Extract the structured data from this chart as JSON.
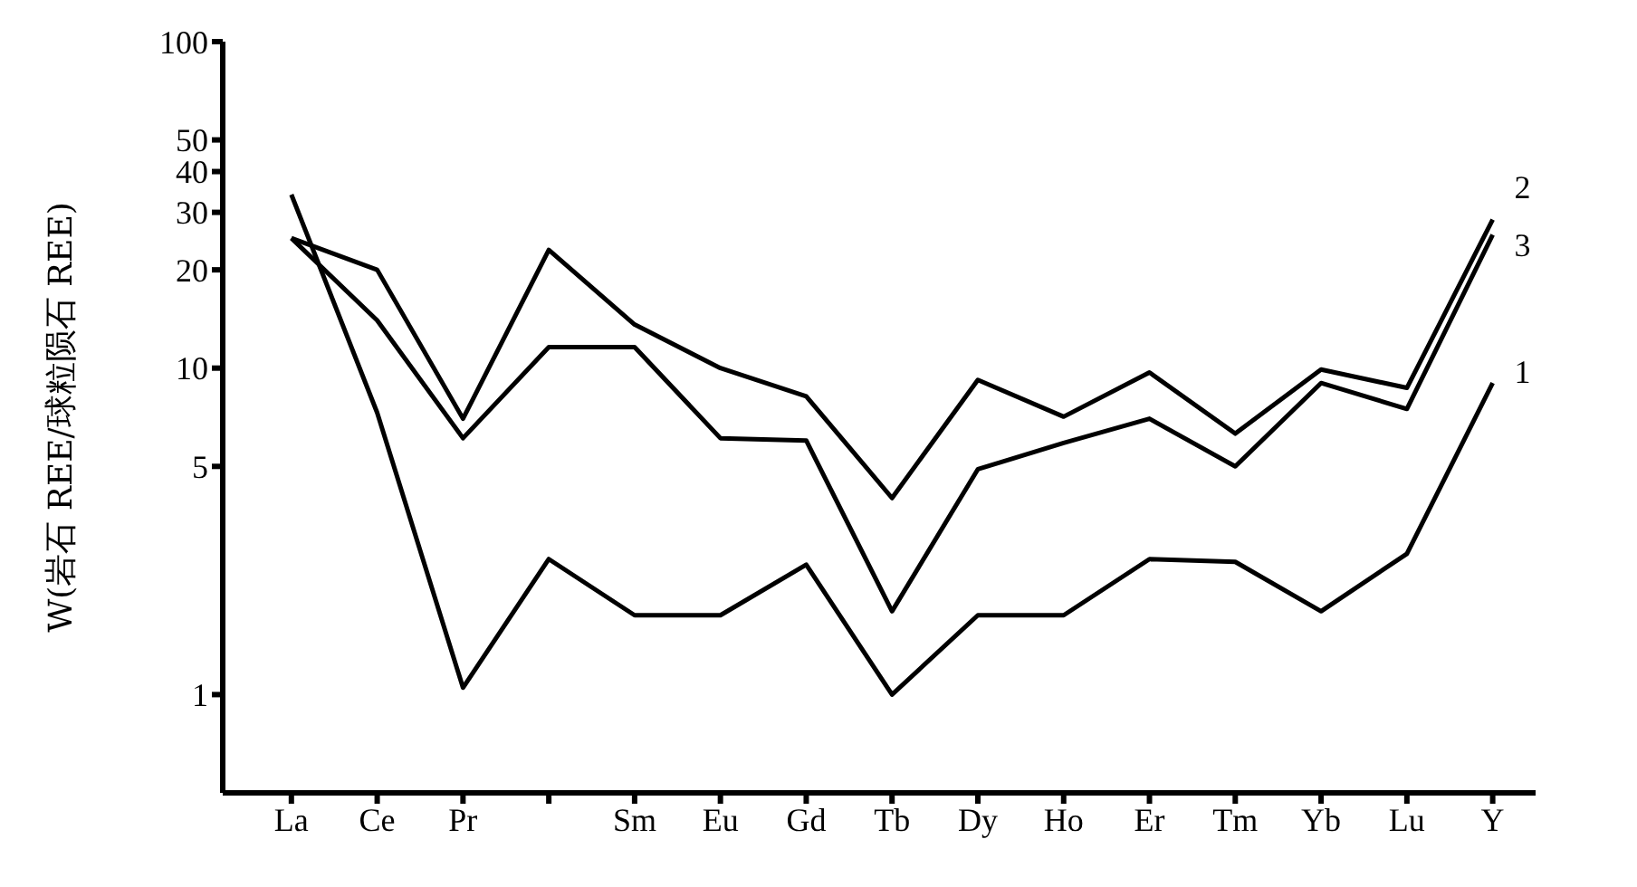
{
  "chart_data": {
    "type": "line",
    "ylabel": "W(岩石 REE/球粒陨石 REE)",
    "categories": [
      "La",
      "Ce",
      "Pr",
      null,
      "Sm",
      "Eu",
      "Gd",
      "Tb",
      "Dy",
      "Ho",
      "Er",
      "Tm",
      "Yb",
      "Lu",
      "Y"
    ],
    "series": [
      {
        "name": "1",
        "color": "#000000",
        "values": [
          34,
          7.3,
          1.05,
          2.6,
          1.75,
          1.75,
          2.5,
          1.0,
          1.75,
          1.75,
          2.6,
          2.55,
          1.8,
          2.7,
          9.0
        ]
      },
      {
        "name": "2",
        "color": "#000000",
        "values": [
          25,
          20,
          7.0,
          23,
          13.6,
          10,
          8.2,
          4.0,
          9.2,
          7.1,
          9.7,
          6.3,
          9.9,
          8.7,
          28.5
        ]
      },
      {
        "name": "3",
        "color": "#000000",
        "values": [
          25,
          14,
          6.1,
          11.6,
          11.6,
          6.1,
          6.0,
          1.8,
          4.9,
          5.9,
          7.0,
          5.0,
          9.0,
          7.5,
          25.6
        ]
      }
    ],
    "log": "y",
    "ylim": [
      0.5,
      100
    ],
    "yticks": [
      1,
      5,
      10,
      20,
      30,
      40,
      50,
      100
    ],
    "marker": "none",
    "line_style": "solid"
  }
}
